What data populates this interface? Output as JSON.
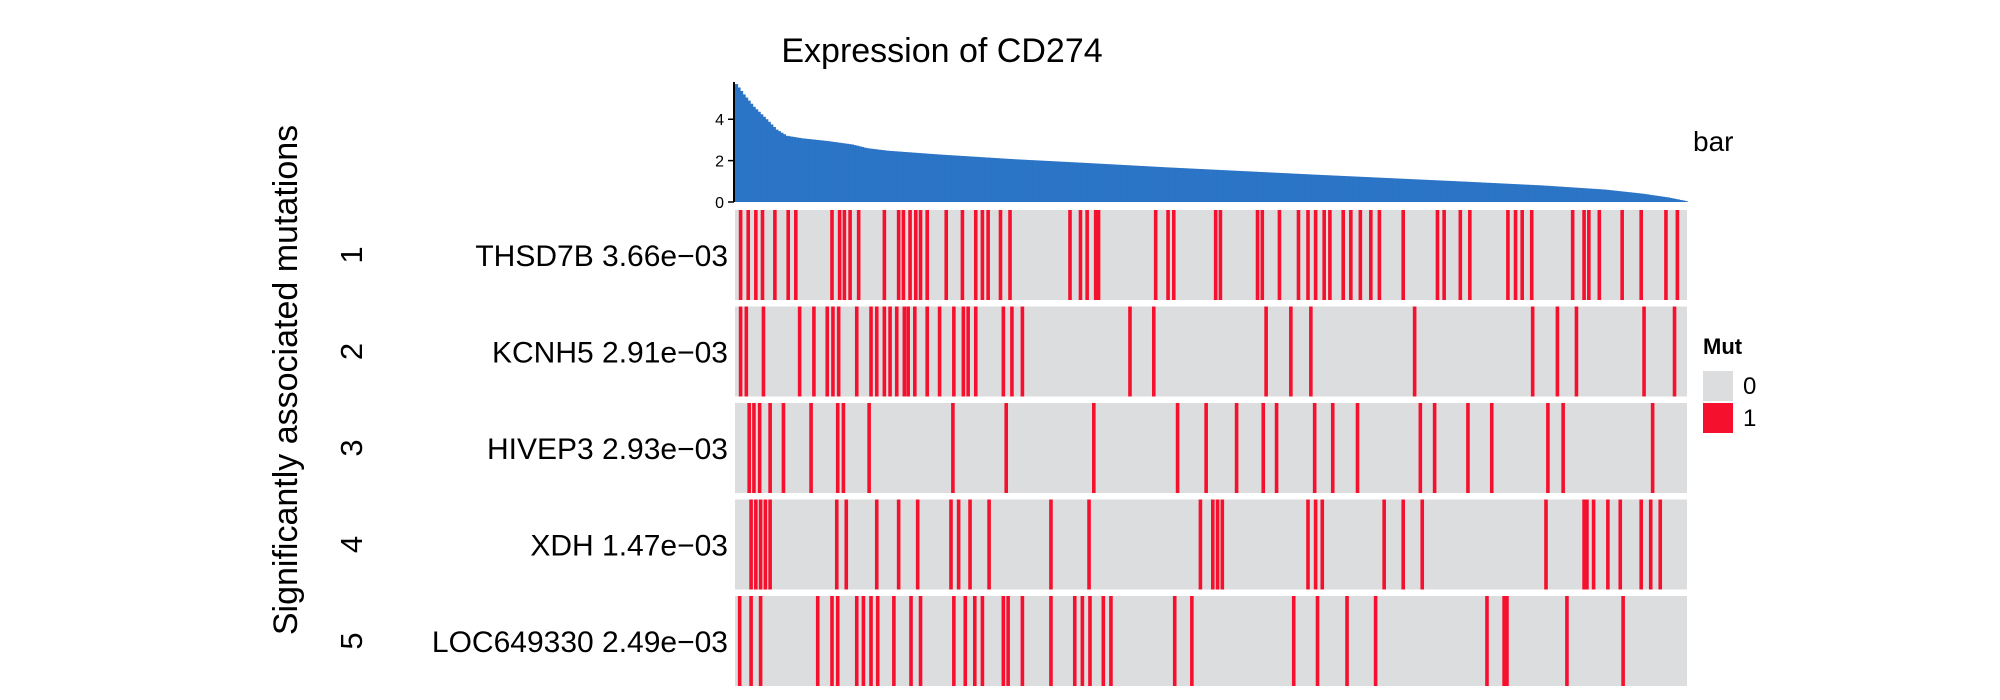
{
  "chart_data": {
    "type": "heatmap",
    "title": "Expression of  CD274",
    "ylabel": "Significantly associated mutations",
    "bar_track": {
      "label": "bar",
      "type": "bar",
      "color": "#2b74c6",
      "ylim": [
        0,
        5.8
      ],
      "yticks": [
        0,
        2,
        4
      ],
      "sample_count": 378,
      "anchors": [
        [
          0,
          5.7
        ],
        [
          3,
          5.2
        ],
        [
          7,
          4.6
        ],
        [
          12,
          4.0
        ],
        [
          16,
          3.5
        ],
        [
          20,
          3.2
        ],
        [
          26,
          3.08
        ],
        [
          36,
          2.95
        ],
        [
          46,
          2.78
        ],
        [
          52,
          2.6
        ],
        [
          60,
          2.48
        ],
        [
          80,
          2.3
        ],
        [
          110,
          2.07
        ],
        [
          140,
          1.88
        ],
        [
          170,
          1.68
        ],
        [
          200,
          1.5
        ],
        [
          230,
          1.32
        ],
        [
          260,
          1.15
        ],
        [
          290,
          0.98
        ],
        [
          320,
          0.8
        ],
        [
          345,
          0.6
        ],
        [
          360,
          0.4
        ],
        [
          370,
          0.22
        ],
        [
          377,
          0.05
        ]
      ]
    },
    "rows": [
      {
        "index": "1",
        "label": "THSD7B 3.66e−03",
        "gene": "THSD7B",
        "p_value": "3.66e-03",
        "mut_positions": [
          0.004,
          0.012,
          0.02,
          0.027,
          0.04,
          0.054,
          0.062,
          0.1,
          0.108,
          0.113,
          0.119,
          0.128,
          0.155,
          0.17,
          0.175,
          0.182,
          0.188,
          0.193,
          0.2,
          0.22,
          0.237,
          0.251,
          0.258,
          0.264,
          0.277,
          0.287,
          0.35,
          0.361,
          0.368,
          0.377,
          0.38,
          0.44,
          0.453,
          0.459,
          0.503,
          0.508,
          0.547,
          0.552,
          0.57,
          0.59,
          0.6,
          0.608,
          0.617,
          0.623,
          0.637,
          0.645,
          0.655,
          0.666,
          0.675,
          0.7,
          0.736,
          0.743,
          0.76,
          0.77,
          0.81,
          0.818,
          0.825,
          0.835,
          0.878,
          0.89,
          0.895,
          0.906,
          0.93,
          0.95,
          0.976,
          0.988
        ]
      },
      {
        "index": "2",
        "label": "KCNH5 2.91e−03",
        "gene": "KCNH5",
        "p_value": "2.91e-03",
        "mut_positions": [
          0.004,
          0.01,
          0.028,
          0.066,
          0.081,
          0.095,
          0.101,
          0.107,
          0.126,
          0.141,
          0.147,
          0.155,
          0.161,
          0.168,
          0.176,
          0.18,
          0.187,
          0.2,
          0.213,
          0.228,
          0.238,
          0.243,
          0.251,
          0.28,
          0.289,
          0.3,
          0.413,
          0.438,
          0.556,
          0.582,
          0.603,
          0.712,
          0.836,
          0.862,
          0.882,
          0.953,
          0.985
        ]
      },
      {
        "index": "3",
        "label": "HIVEP3 2.93e−03",
        "gene": "HIVEP3",
        "p_value": "2.93e-03",
        "mut_positions": [
          0.013,
          0.018,
          0.024,
          0.035,
          0.049,
          0.078,
          0.106,
          0.112,
          0.139,
          0.227,
          0.283,
          0.375,
          0.463,
          0.493,
          0.525,
          0.553,
          0.567,
          0.607,
          0.626,
          0.652,
          0.718,
          0.733,
          0.768,
          0.793,
          0.852,
          0.868,
          0.962
        ]
      },
      {
        "index": "4",
        "label": "XDH 1.47e−03",
        "gene": "XDH",
        "p_value": "1.47e-03",
        "mut_positions": [
          0.015,
          0.02,
          0.025,
          0.03,
          0.035,
          0.105,
          0.115,
          0.147,
          0.17,
          0.19,
          0.225,
          0.233,
          0.245,
          0.265,
          0.33,
          0.37,
          0.487,
          0.5,
          0.505,
          0.51,
          0.6,
          0.608,
          0.615,
          0.68,
          0.7,
          0.72,
          0.85,
          0.89,
          0.893,
          0.9,
          0.915,
          0.928,
          0.95,
          0.96,
          0.97
        ]
      },
      {
        "index": "5",
        "label": "LOC649330 2.49e−03",
        "gene": "LOC649330",
        "p_value": "2.49e-03",
        "mut_positions": [
          0.003,
          0.015,
          0.025,
          0.085,
          0.1,
          0.106,
          0.126,
          0.133,
          0.141,
          0.148,
          0.165,
          0.183,
          0.193,
          0.228,
          0.24,
          0.25,
          0.258,
          0.28,
          0.285,
          0.3,
          0.33,
          0.355,
          0.363,
          0.371,
          0.385,
          0.393,
          0.46,
          0.478,
          0.585,
          0.61,
          0.641,
          0.671,
          0.788,
          0.806,
          0.809,
          0.872,
          0.931
        ]
      }
    ],
    "legend": {
      "title": "Mut",
      "placement": "right",
      "entries": [
        {
          "label": "0",
          "color": "#dcdddf"
        },
        {
          "label": "1",
          "color": "#f5102e"
        }
      ]
    }
  }
}
